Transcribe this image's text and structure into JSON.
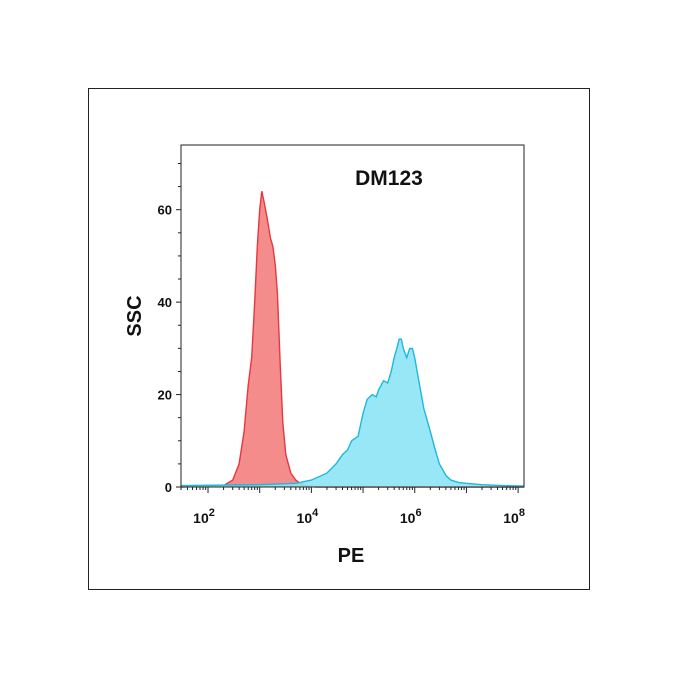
{
  "chart_data": {
    "type": "area",
    "title": "DM123",
    "xlabel": "PE",
    "ylabel": "SSC",
    "xscale": "log",
    "xlim": [
      30,
      130000000
    ],
    "ylim": [
      0,
      74
    ],
    "grid": false,
    "legend": "none",
    "y_ticks": [
      0,
      20,
      40,
      60
    ],
    "y_tick_labels": [
      "0",
      "20",
      "40",
      "60"
    ],
    "x_ticks": [
      100,
      10000,
      1000000,
      100000000
    ],
    "x_tick_labels": [
      {
        "base": "10",
        "exp": "2"
      },
      {
        "base": "10",
        "exp": "4"
      },
      {
        "base": "10",
        "exp": "6"
      },
      {
        "base": "10",
        "exp": "8"
      }
    ],
    "series": [
      {
        "color": "#f47f80",
        "stroke": "#e8373f",
        "x": [
          30,
          200,
          300,
          400,
          500,
          600,
          700,
          800,
          900,
          1000,
          1100,
          1200,
          1400,
          1600,
          1800,
          2000,
          2200,
          2500,
          2800,
          3200,
          4000,
          5000,
          6000,
          8000,
          12000,
          20000,
          50000,
          130000000
        ],
        "y": [
          0,
          0.3,
          1.5,
          5,
          12,
          22,
          28,
          40,
          52,
          60,
          64,
          62,
          58,
          54,
          52,
          48,
          42,
          26,
          14,
          7,
          3,
          1.5,
          0.8,
          0.3,
          0,
          0,
          0,
          0
        ]
      },
      {
        "color": "#8ce4f6",
        "stroke": "#1fb8dc",
        "x": [
          30,
          1000,
          5000,
          10000,
          20000,
          30000,
          40000,
          50000,
          60000,
          80000,
          100000,
          120000,
          150000,
          180000,
          200000,
          250000,
          300000,
          350000,
          400000,
          450000,
          500000,
          550000,
          600000,
          700000,
          800000,
          900000,
          1000000,
          1200000,
          1500000,
          2000000,
          2500000,
          3000000,
          4000000,
          5000000,
          7000000,
          10000000,
          20000000,
          50000000,
          130000000
        ],
        "y": [
          0.3,
          0.5,
          0.8,
          1.5,
          3,
          5,
          7,
          8,
          10,
          11,
          16,
          19,
          20,
          19.5,
          21,
          23,
          22.5,
          25,
          28,
          30,
          32,
          32,
          30,
          28,
          30,
          30,
          28,
          23,
          17,
          12,
          8,
          5,
          2.5,
          1.5,
          1,
          0.8,
          0.5,
          0.3,
          0.2
        ]
      }
    ]
  }
}
